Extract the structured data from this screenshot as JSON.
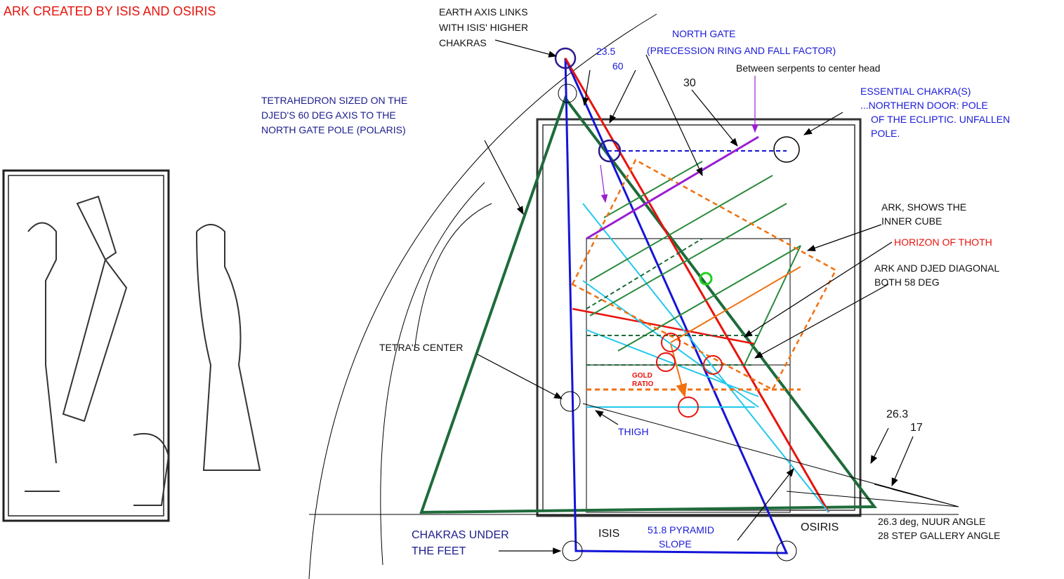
{
  "title": "ARK CREATED BY ISIS AND OSIRIS",
  "labels": {
    "earth_axis": [
      "EARTH AXIS LINKS",
      "WITH ISIS' HIGHER",
      "CHAKRAS"
    ],
    "north_gate": [
      "NORTH GATE",
      "(PRECESSION RING AND FALL FACTOR)"
    ],
    "angle_23": "23.5",
    "angle_60": "60",
    "serpents": "Between serpents to center head",
    "angle_30": "30",
    "essential": [
      "ESSENTIAL CHAKRA(S)",
      "...NORTHERN DOOR: POLE",
      "OF THE ECLIPTIC. UNFALLEN",
      "POLE."
    ],
    "tetrahedron": [
      "TETRAHEDRON SIZED ON THE",
      "DJED'S 60 DEG AXIS TO THE",
      "NORTH GATE POLE (POLARIS)"
    ],
    "ark_cube": [
      "ARK, SHOWS THE",
      "INNER CUBE"
    ],
    "horizon": "HORIZON OF THOTH",
    "diagonal": [
      "ARK AND DJED DIAGONAL",
      "BOTH 58 DEG"
    ],
    "tetra_center": "TETRA'S CENTER",
    "gold_ratio": [
      "GOLD",
      "RATIO"
    ],
    "thigh": "THIGH",
    "angle_26": "26.3",
    "angle_17": "17",
    "nuur": [
      "26.3 deg, NUUR ANGLE",
      "28 STEP GALLERY ANGLE"
    ],
    "chakras_feet": [
      "CHAKRAS UNDER",
      "THE FEET"
    ],
    "isis": "ISIS",
    "pyramid": [
      "51.8 PYRAMID",
      "SLOPE"
    ],
    "osiris": "OSIRIS"
  }
}
